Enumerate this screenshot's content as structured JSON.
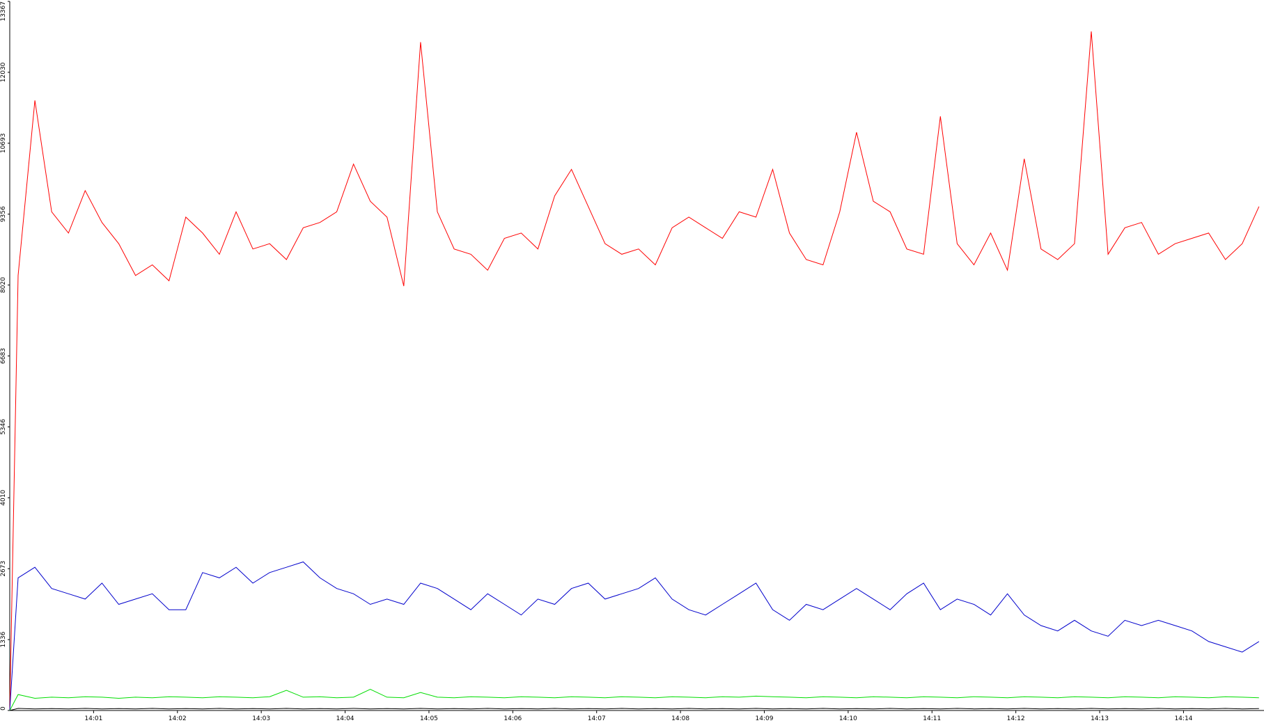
{
  "chart_data": {
    "type": "line",
    "x": [
      0,
      0.1,
      0.3,
      0.5,
      0.7,
      0.9,
      1.1,
      1.3,
      1.5,
      1.7,
      1.9,
      2.1,
      2.3,
      2.5,
      2.7,
      2.9,
      3.1,
      3.3,
      3.5,
      3.7,
      3.9,
      4.1,
      4.3,
      4.5,
      4.7,
      4.9,
      5.1,
      5.3,
      5.5,
      5.7,
      5.9,
      6.1,
      6.3,
      6.5,
      6.7,
      6.9,
      7.1,
      7.3,
      7.5,
      7.7,
      7.9,
      8.1,
      8.3,
      8.5,
      8.7,
      8.9,
      9.1,
      9.3,
      9.5,
      9.7,
      9.9,
      10.1,
      10.3,
      10.5,
      10.7,
      10.9,
      11.1,
      11.3,
      11.5,
      11.7,
      11.9,
      12.1,
      12.3,
      12.5,
      12.7,
      12.9,
      13.1,
      13.3,
      13.5,
      13.7,
      13.9,
      14.1,
      14.3,
      14.5,
      14.7,
      14.9
    ],
    "series": [
      {
        "color": "#ff0000",
        "values": [
          0,
          8200,
          11500,
          9400,
          9000,
          9800,
          9200,
          8800,
          8200,
          8400,
          8100,
          9300,
          9000,
          8600,
          9400,
          8700,
          8800,
          8500,
          9100,
          9200,
          9400,
          10300,
          9600,
          9300,
          8000,
          12600,
          9400,
          8700,
          8600,
          8300,
          8900,
          9000,
          8700,
          9700,
          10200,
          9500,
          8800,
          8600,
          8700,
          8400,
          9100,
          9300,
          9100,
          8900,
          9400,
          9300,
          10200,
          9000,
          8500,
          8400,
          9400,
          10900,
          9600,
          9400,
          8700,
          8600,
          11200,
          8800,
          8400,
          9000,
          8300,
          10400,
          8700,
          8500,
          8800,
          12800,
          8600,
          9100,
          9200,
          8600,
          8800,
          8900,
          9000,
          8500,
          8800,
          9500
        ]
      },
      {
        "color": "#0000cc",
        "values": [
          0,
          2500,
          2700,
          2300,
          2200,
          2100,
          2400,
          2000,
          2100,
          2200,
          1900,
          1900,
          2600,
          2500,
          2700,
          2400,
          2600,
          2700,
          2800,
          2500,
          2300,
          2200,
          2000,
          2100,
          2000,
          2400,
          2300,
          2100,
          1900,
          2200,
          2000,
          1800,
          2100,
          2000,
          2300,
          2400,
          2100,
          2200,
          2300,
          2500,
          2100,
          1900,
          1800,
          2000,
          2200,
          2400,
          1900,
          1700,
          2000,
          1900,
          2100,
          2300,
          2100,
          1900,
          2200,
          2400,
          1900,
          2100,
          2000,
          1800,
          2200,
          1800,
          1600,
          1500,
          1700,
          1500,
          1400,
          1700,
          1600,
          1700,
          1600,
          1500,
          1300,
          1200,
          1100,
          1300
        ]
      },
      {
        "color": "#00dd00",
        "values": [
          0,
          300,
          230,
          250,
          240,
          260,
          250,
          230,
          250,
          240,
          260,
          250,
          240,
          260,
          250,
          240,
          260,
          380,
          250,
          260,
          240,
          250,
          400,
          250,
          240,
          340,
          250,
          240,
          260,
          250,
          240,
          260,
          250,
          240,
          260,
          250,
          240,
          260,
          250,
          240,
          260,
          250,
          240,
          260,
          250,
          270,
          260,
          250,
          240,
          260,
          250,
          240,
          260,
          250,
          240,
          260,
          250,
          240,
          260,
          250,
          240,
          260,
          250,
          240,
          260,
          250,
          240,
          260,
          250,
          240,
          260,
          250,
          240,
          260,
          250,
          240
        ]
      },
      {
        "color": "#000000",
        "values": [
          0,
          40,
          30,
          35,
          30,
          40,
          30,
          35,
          30,
          40,
          30,
          35,
          30,
          40,
          30,
          35,
          30,
          40,
          30,
          35,
          30,
          40,
          30,
          35,
          30,
          40,
          30,
          35,
          30,
          40,
          30,
          35,
          30,
          40,
          30,
          35,
          30,
          40,
          30,
          35,
          30,
          40,
          30,
          35,
          30,
          40,
          30,
          35,
          30,
          40,
          30,
          35,
          30,
          40,
          30,
          35,
          30,
          40,
          30,
          35,
          30,
          40,
          30,
          35,
          30,
          40,
          30,
          35,
          30,
          40,
          30,
          35,
          30,
          40,
          30,
          35
        ]
      }
    ],
    "xlim": [
      0,
      14.96
    ],
    "xticks": [
      {
        "value": 1,
        "label": "14:01"
      },
      {
        "value": 2,
        "label": "14:02"
      },
      {
        "value": 3,
        "label": "14:03"
      },
      {
        "value": 4,
        "label": "14:04"
      },
      {
        "value": 5,
        "label": "14:05"
      },
      {
        "value": 6,
        "label": "14:06"
      },
      {
        "value": 7,
        "label": "14:07"
      },
      {
        "value": 8,
        "label": "14:08"
      },
      {
        "value": 9,
        "label": "14:09"
      },
      {
        "value": 10,
        "label": "14:10"
      },
      {
        "value": 11,
        "label": "14:11"
      },
      {
        "value": 12,
        "label": "14:12"
      },
      {
        "value": 13,
        "label": "14:13"
      },
      {
        "value": 14,
        "label": "14:14"
      }
    ],
    "ylim": [
      0,
      13367
    ],
    "yticks": [
      0,
      1336,
      2673,
      4010,
      5346,
      6683,
      8020,
      9356,
      10693,
      12030,
      13367
    ]
  }
}
